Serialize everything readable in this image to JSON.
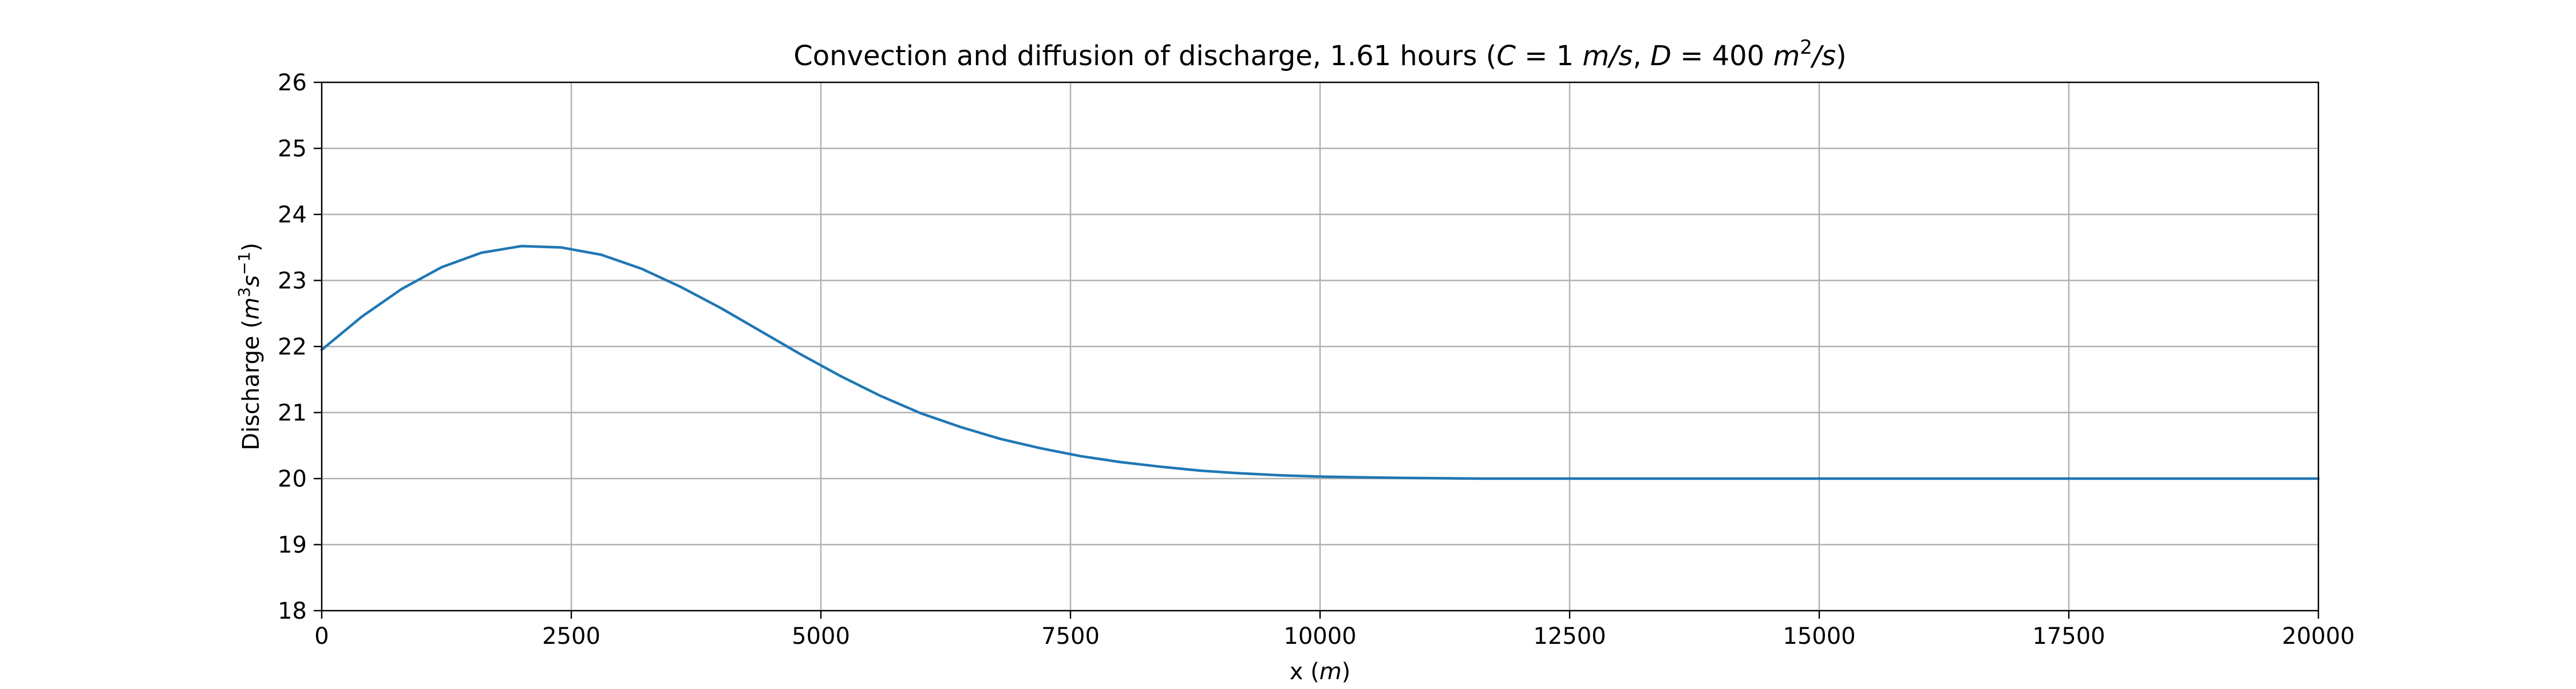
{
  "chart_data": {
    "type": "line",
    "title": "Convection and diffusion of discharge, 1.61 hours (",
    "title_math": {
      "C": "C",
      "eq1": " = 1 ",
      "unit1": "m/s",
      "sep": ", ",
      "D": "D",
      "eq2": " = 400 ",
      "unit2a": "m",
      "unit2sup": "2",
      "unit2b": "/s",
      "close": ")"
    },
    "xlabel": "x (",
    "xlabel_unit": "m",
    "xlabel_close": ")",
    "ylabel": "Discharge (",
    "ylabel_m": "m",
    "ylabel_sup3": "3",
    "ylabel_s": "s",
    "ylabel_supneg": "−1",
    "ylabel_close": ")",
    "xlim": [
      0,
      20000
    ],
    "ylim": [
      18,
      26
    ],
    "xticks": [
      0,
      2500,
      5000,
      7500,
      10000,
      12500,
      15000,
      17500,
      20000
    ],
    "yticks": [
      18,
      19,
      20,
      21,
      22,
      23,
      24,
      25,
      26
    ],
    "grid": true,
    "series": [
      {
        "color": "#1f77b4",
        "x": [
          0,
          400,
          800,
          1200,
          1600,
          2000,
          2400,
          2800,
          3200,
          3600,
          4000,
          4400,
          4800,
          5200,
          5600,
          6000,
          6400,
          6800,
          7200,
          7600,
          8000,
          8400,
          8800,
          9200,
          9600,
          10000,
          10400,
          10800,
          11200,
          11600,
          12000,
          12500,
          13000,
          14000,
          15000,
          16000,
          17000,
          18000,
          19000,
          20000
        ],
        "y": [
          21.95,
          22.45,
          22.87,
          23.2,
          23.42,
          23.52,
          23.5,
          23.39,
          23.18,
          22.9,
          22.58,
          22.23,
          21.88,
          21.55,
          21.25,
          20.99,
          20.78,
          20.6,
          20.46,
          20.34,
          20.25,
          20.18,
          20.12,
          20.08,
          20.05,
          20.03,
          20.02,
          20.01,
          20.005,
          20.0,
          20.0,
          20.0,
          20.0,
          20.0,
          20.0,
          20.0,
          20.0,
          20.0,
          20.0,
          20.0
        ]
      }
    ]
  }
}
